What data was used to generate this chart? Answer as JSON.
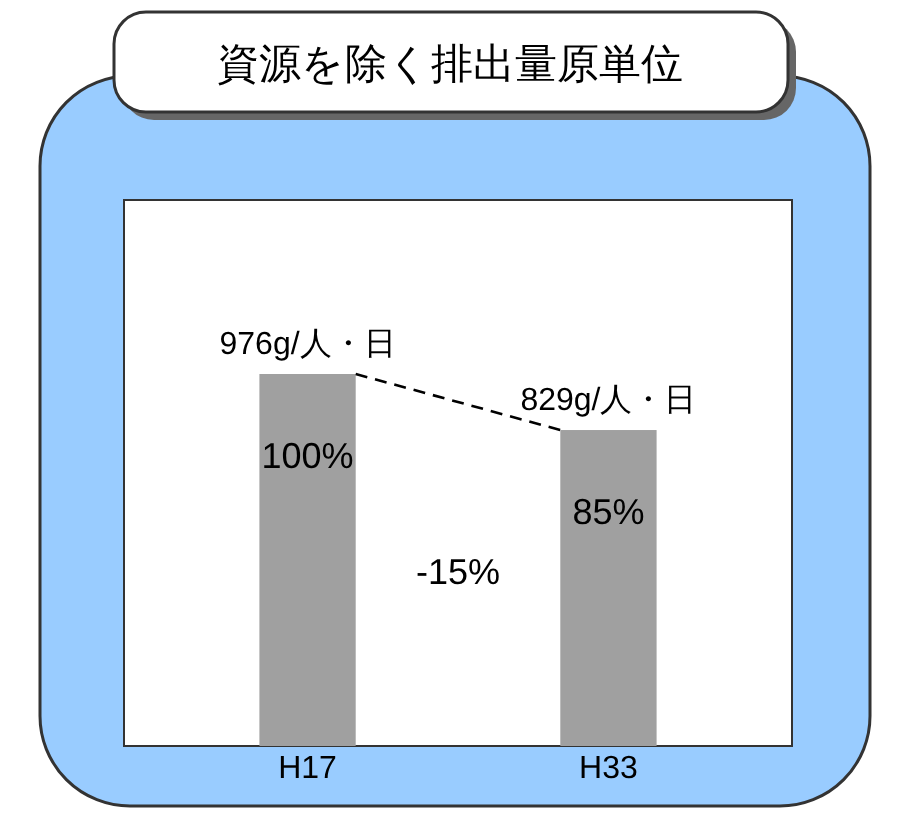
{
  "chart_data": {
    "type": "bar",
    "title": "資源を除く排出量原単位",
    "categories": [
      "H17",
      "H33"
    ],
    "values": [
      976,
      829
    ],
    "color": "#a0a0a0",
    "value_labels": [
      "976g/人・日",
      "829g/人・日"
    ],
    "relative": false,
    "annotations": [
      "100%",
      "85%",
      "-15%"
    ]
  }
}
